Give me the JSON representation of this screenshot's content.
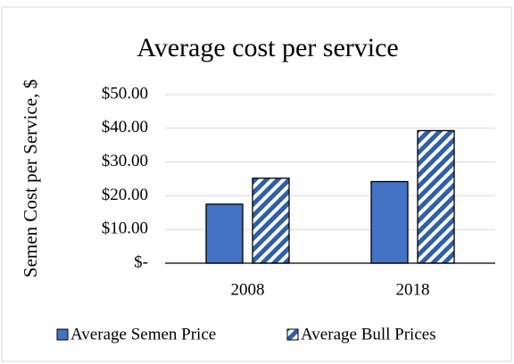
{
  "chart_data": {
    "type": "bar",
    "title": "Average cost per service",
    "y_label": "Semen Cost per Service, $",
    "categories": [
      "2008",
      "2018"
    ],
    "series": [
      {
        "name": "Average Semen Price",
        "color": "#4472c4",
        "fill_style": "solid",
        "values": [
          17.5,
          24.2
        ]
      },
      {
        "name": "Average Bull Prices",
        "color": "#2f5fa7",
        "fill_style": "diagonal-hatch",
        "values": [
          25.2,
          39.3
        ]
      }
    ],
    "ylim": [
      0,
      50
    ],
    "yticks": [
      {
        "value": 0,
        "label": "$-"
      },
      {
        "value": 10,
        "label": "$10.00"
      },
      {
        "value": 20,
        "label": "$20.00"
      },
      {
        "value": 30,
        "label": "$30.00"
      },
      {
        "value": 40,
        "label": "$40.00"
      },
      {
        "value": 50,
        "label": "$50.00"
      }
    ],
    "grid": true,
    "legend": "bottom"
  }
}
